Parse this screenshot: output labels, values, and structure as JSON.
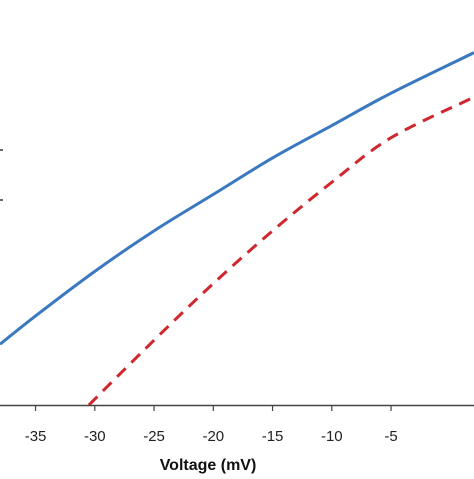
{
  "chart_data": {
    "type": "line",
    "title": "",
    "xlabel": "Voltage (mV)",
    "ylabel": "",
    "xlim": [
      -38,
      2
    ],
    "ylim": [
      0,
      1
    ],
    "x_ticks": [
      -35,
      -30,
      -25,
      -20,
      -15,
      -10,
      -5
    ],
    "x_tick_labels": [
      "-35",
      "-30",
      "-25",
      "-20",
      "-15",
      "-10",
      "-5"
    ],
    "grid": false,
    "legend": "none",
    "series": [
      {
        "style": "solid",
        "color": "#3a78c0",
        "x": [
          -38,
          -35,
          -30,
          -25,
          -20,
          -15,
          -10,
          -5,
          2
        ],
        "y": [
          0.15,
          0.22,
          0.33,
          0.43,
          0.52,
          0.61,
          0.69,
          0.77,
          0.87
        ]
      },
      {
        "style": "dashed",
        "color": "#d0262e",
        "x": [
          -30.5,
          -25,
          -20,
          -15,
          -10,
          -5,
          2
        ],
        "y": [
          0.0,
          0.16,
          0.3,
          0.43,
          0.55,
          0.66,
          0.76
        ]
      }
    ]
  }
}
